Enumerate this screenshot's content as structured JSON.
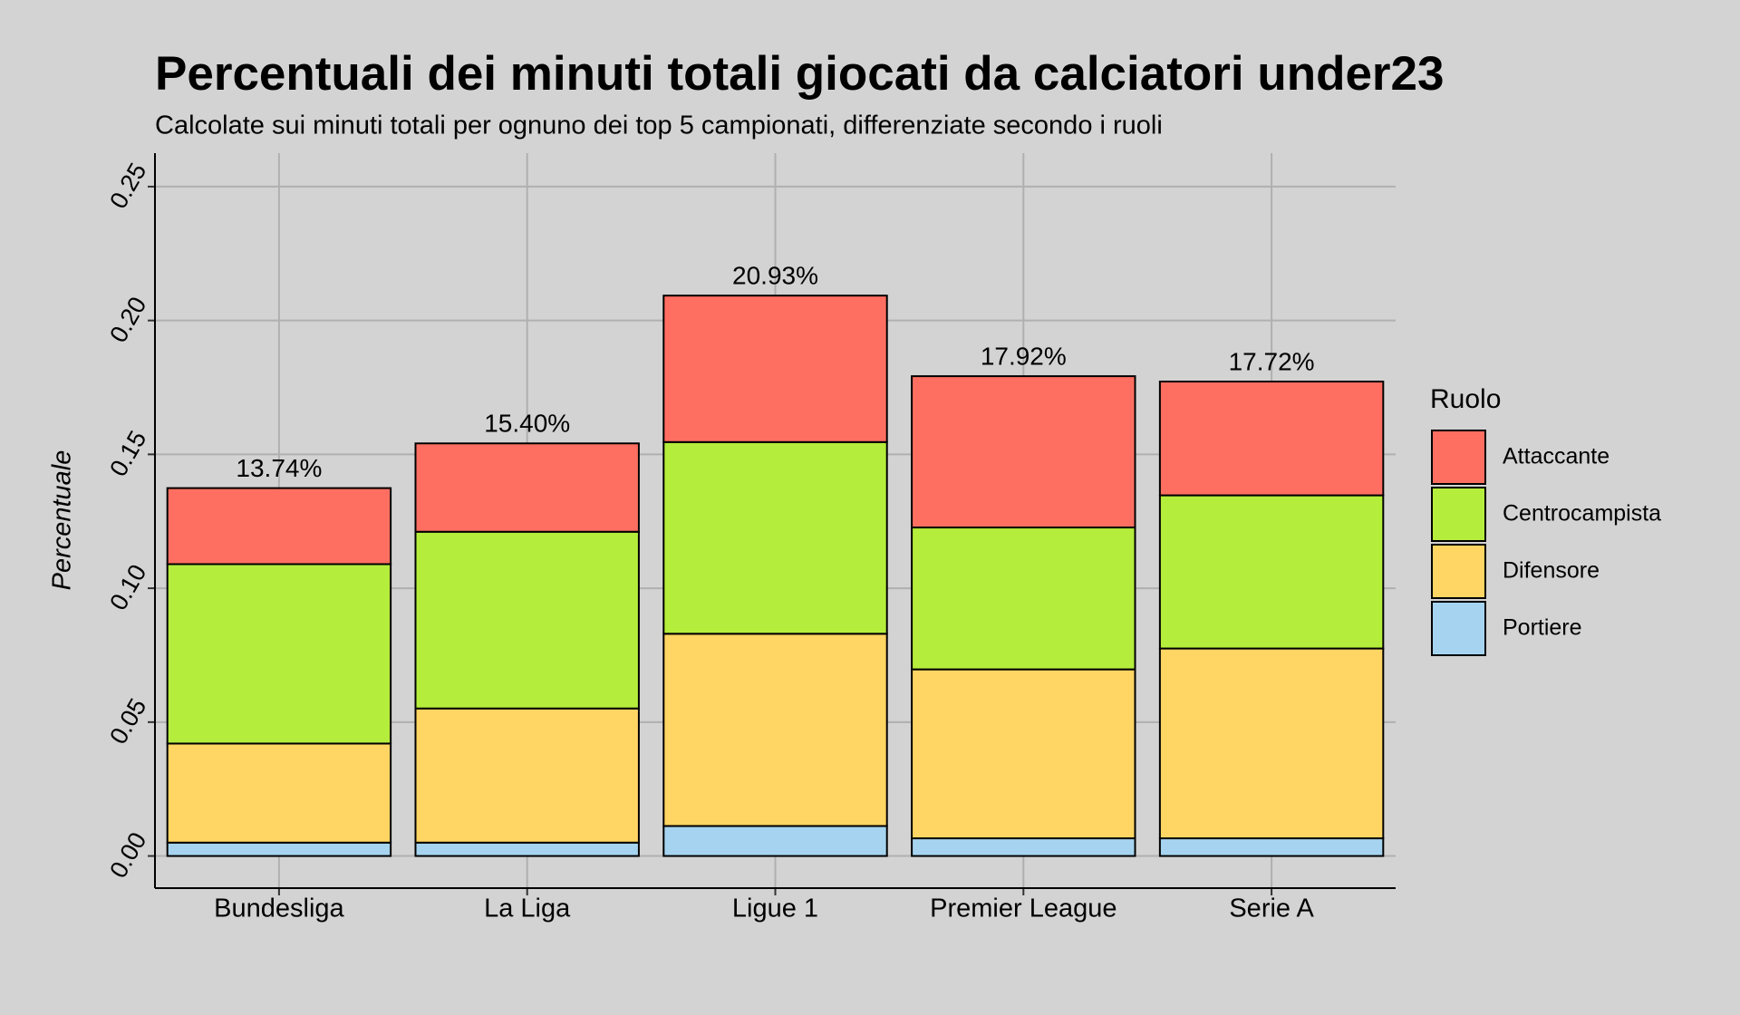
{
  "chart_data": {
    "type": "stacked_bar",
    "title": "Percentuali dei minuti totali giocati da calciatori under23",
    "subtitle": "Calcolate sui minuti totali per ognuno dei top 5 campionati, differenziate secondo i ruoli",
    "y_label": "Percentuale",
    "legend_title": "Ruolo",
    "categories": [
      "Bundesliga",
      "La Liga",
      "Ligue 1",
      "Premier League",
      "Serie A"
    ],
    "series": [
      {
        "name": "Portiere",
        "color": "#a6d4f0",
        "values": [
          0.005,
          0.005,
          0.0112,
          0.0066,
          0.0066
        ]
      },
      {
        "name": "Difensore",
        "color": "#ffd563",
        "values": [
          0.037,
          0.0501,
          0.0718,
          0.0631,
          0.0709
        ]
      },
      {
        "name": "Centrocampista",
        "color": "#b5ed3c",
        "values": [
          0.067,
          0.066,
          0.0716,
          0.053,
          0.0572
        ]
      },
      {
        "name": "Attaccante",
        "color": "#ff6f61",
        "values": [
          0.0284,
          0.033,
          0.0547,
          0.0565,
          0.0425
        ]
      }
    ],
    "totals": {
      "values": [
        0.1374,
        0.154,
        0.2093,
        0.1792,
        0.1772
      ],
      "value_labels": [
        "13.74%",
        "15.40%",
        "20.93%",
        "17.92%",
        "17.72%"
      ]
    },
    "ylim": [
      -0.012,
      0.2625
    ],
    "yticks": [
      {
        "value": 0,
        "label": "0.00"
      },
      {
        "value": 0.05,
        "label": "0.05"
      },
      {
        "value": 0.1,
        "label": "0.10"
      },
      {
        "value": 0.15,
        "label": "0.15"
      },
      {
        "value": 0.2,
        "label": "0.20"
      },
      {
        "value": 0.25,
        "label": "0.25"
      }
    ],
    "grid": true,
    "legend_position": "right"
  }
}
